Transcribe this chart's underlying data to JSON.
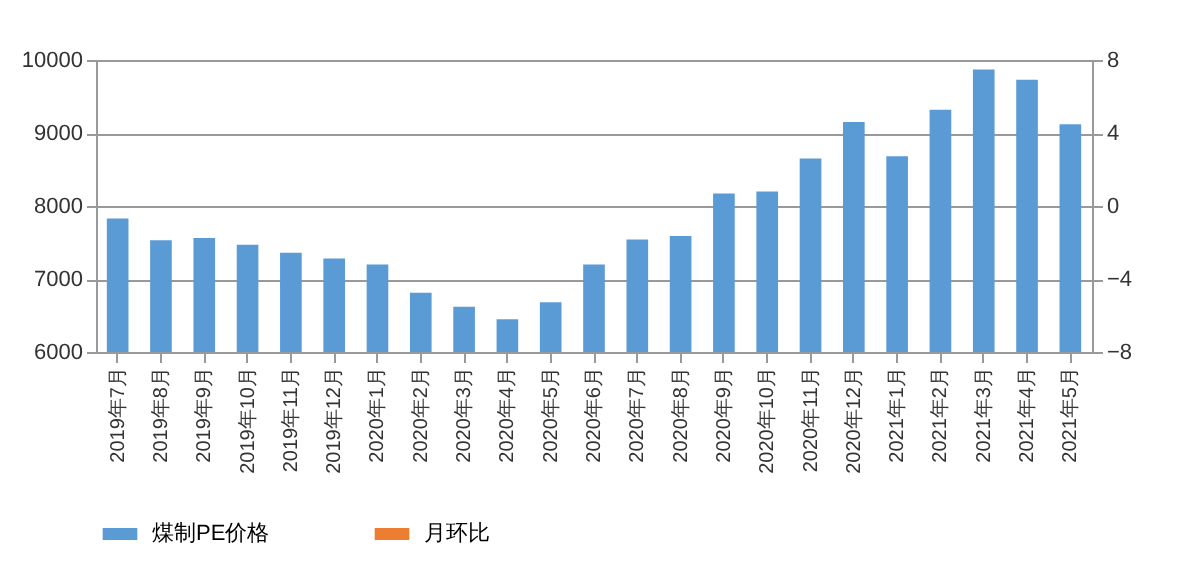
{
  "chart_data": {
    "type": "bar",
    "categories": [
      "2019年7月",
      "2019年8月",
      "2019年9月",
      "2019年10月",
      "2019年11月",
      "2019年12月",
      "2020年1月",
      "2020年2月",
      "2020年3月",
      "2020年4月",
      "2020年5月",
      "2020年6月",
      "2020年7月",
      "2020年8月",
      "2020年9月",
      "2020年10月",
      "2020年11月",
      "2020年12月",
      "2021年1月",
      "2021年2月",
      "2021年3月",
      "2021年4月",
      "2021年5月"
    ],
    "series": [
      {
        "name": "煤制PE价格",
        "color": "#5b9bd5",
        "values": [
          7830,
          7530,
          7560,
          7470,
          7360,
          7280,
          7200,
          6810,
          6620,
          6450,
          6680,
          7200,
          7540,
          7590,
          8170,
          8200,
          8650,
          9150,
          8680,
          9320,
          9870,
          9730,
          9120
        ]
      },
      {
        "name": "月环比",
        "color": "#ed7d31",
        "type": "line",
        "axis": "y2",
        "values": [
          null,
          null,
          null,
          null,
          null,
          null,
          null,
          null,
          null,
          null,
          null,
          null,
          null,
          null,
          null,
          null,
          null,
          null,
          null,
          null,
          null,
          null,
          null
        ]
      }
    ],
    "ylim": [
      6000,
      10000
    ],
    "yticks": [
      6000,
      7000,
      8000,
      9000,
      10000
    ],
    "y2lim": [
      -8,
      8
    ],
    "y2ticks": [
      -8,
      -4,
      0,
      4,
      8
    ],
    "grid": "y",
    "legend": "bottom"
  }
}
